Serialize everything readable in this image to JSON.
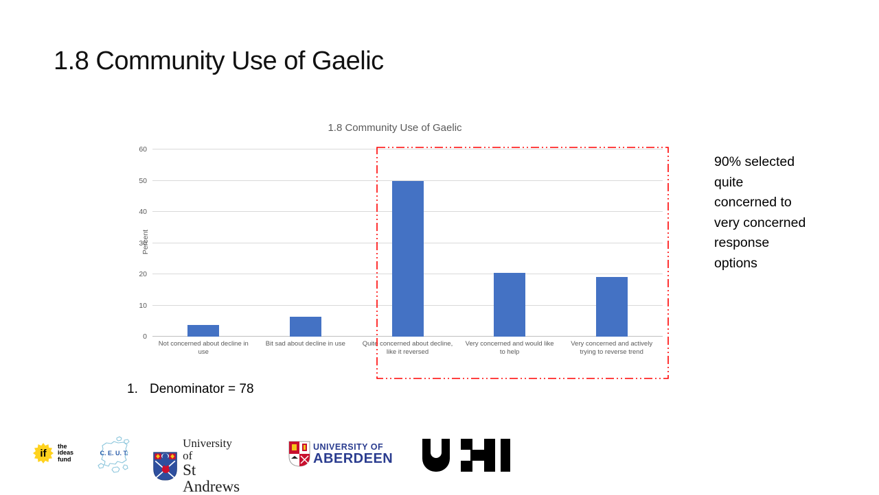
{
  "slide": {
    "title": "1.8 Community Use of Gaelic",
    "annotation": "90% selected quite concerned to very concerned response options",
    "footnote": {
      "number": "1.",
      "text": "Denominator  =  78"
    }
  },
  "chart_data": {
    "type": "bar",
    "title": "1.8 Community Use of Gaelic",
    "xlabel": "",
    "ylabel": "Percent",
    "ylim": [
      0,
      60
    ],
    "ytick_step": 10,
    "grid": true,
    "legend": "none",
    "bar_color": "#4472C4",
    "categories": [
      "Not concerned about decline in use",
      "Bit sad about decline in use",
      "Quite concerned about decline, like it reversed",
      "Very concerned and would like to help",
      "Very concerned and actively trying to reverse trend"
    ],
    "values": [
      3.8,
      6.4,
      50,
      20.5,
      19.2
    ],
    "highlight_box": {
      "style": "red dash-dot rectangle",
      "color": "#FF0000",
      "covers_categories": [
        "Quite concerned about decline, like it reversed",
        "Very concerned and would like to help",
        "Very concerned and actively trying to reverse trend"
      ]
    }
  },
  "logos": {
    "ideas_fund": {
      "symbol": "if",
      "lines": [
        "the",
        "ideas",
        "fund"
      ]
    },
    "ceut": {
      "label": "C. E. U. T."
    },
    "st_andrews": {
      "line1": "University of",
      "line2": "St Andrews"
    },
    "aberdeen": {
      "line1": "UNIVERSITY OF",
      "line2": "ABERDEEN"
    },
    "uhi": {
      "label": "UHI"
    }
  }
}
